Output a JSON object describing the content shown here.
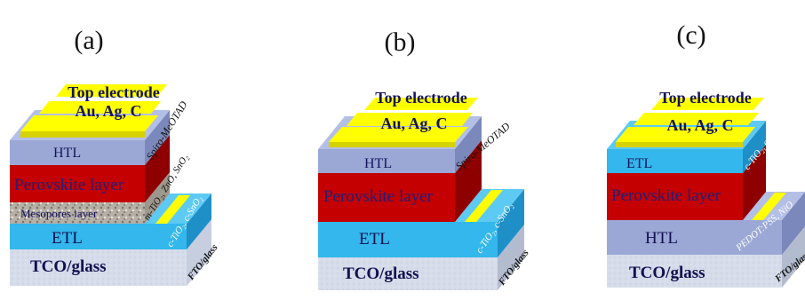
{
  "panels": [
    {
      "label": "(a)",
      "top_electrode": "Top electrode",
      "metals": "Au, Ag,  C",
      "htl": "HTL",
      "htl_side": "Spiro-MeOTAD",
      "perovskite": "Perovskite layer",
      "mesopores": "Mesopores layer",
      "meso_side": "m-TiO₂, ZnO, SnO₂",
      "etl": "ETL",
      "etl_side": "c-TiO₂, c-SnO₂",
      "tco": "TCO/glass",
      "fto": "FTO/glass"
    },
    {
      "label": "(b)",
      "top_electrode": "Top electrode",
      "metals": "Au, Ag,  C",
      "htl": "HTL",
      "htl_side": "Spiro-MeOTAD",
      "perovskite": "Perovskite layer",
      "etl": "ETL",
      "etl_side": "c-TiO₂, c-SnO₂",
      "tco": "TCO/glass",
      "fto": "FTO/glass"
    },
    {
      "label": "(c)",
      "top_electrode": "Top electrode",
      "metals": "Au, Ag,  C",
      "etl": "ETL",
      "etl_side": "c-TiO₂, c-SnO₂",
      "perovskite": "Perovskite layer",
      "htl": "HTL",
      "htl_side": "PEDOT:PSS, NiO",
      "tco": "TCO/glass",
      "fto": "FTO/glass"
    }
  ],
  "colors": {
    "gold": "#ffff00",
    "htl": "#9ba8d6",
    "perovskite": "#c40000",
    "etl_c": "#33b7ec",
    "tco": "#d3dae8",
    "text_dark": "#14145a"
  }
}
